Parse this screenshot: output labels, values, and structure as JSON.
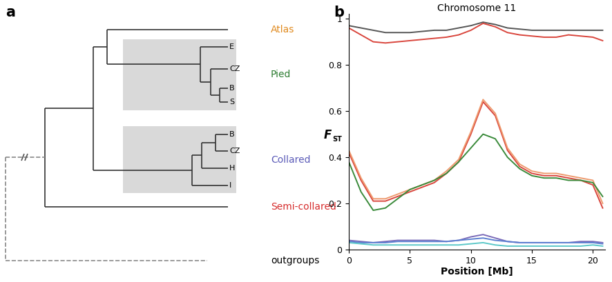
{
  "panel_labels": [
    "a",
    "b"
  ],
  "tree": {
    "species": [
      {
        "name": "Atlas",
        "color": "#e08a1e",
        "populations": []
      },
      {
        "name": "Pied",
        "color": "#2e7d32",
        "populations": [
          "E",
          "CZ",
          "B",
          "S"
        ]
      },
      {
        "name": "Collared",
        "color": "#5b5bb8",
        "populations": [
          "B",
          "CZ",
          "H",
          "I"
        ]
      },
      {
        "name": "Semi-collared",
        "color": "#d62c2c",
        "populations": []
      },
      {
        "name": "outgroups",
        "color": "#000000",
        "populations": []
      }
    ]
  },
  "chart_data": {
    "type": "line",
    "title": "Chromosome 11",
    "xlabel": "Position [Mb]",
    "ylabel": "FST",
    "x": [
      0,
      1,
      2,
      3,
      4,
      5,
      6,
      7,
      8,
      9,
      10,
      11,
      12,
      13,
      14,
      15,
      16,
      17,
      18,
      19,
      20,
      20.8
    ],
    "xlim": [
      0,
      21
    ],
    "xticks": [
      0,
      5,
      10,
      15,
      20
    ],
    "ylim": [
      0,
      1.02
    ],
    "yticks": [
      0,
      0.2,
      0.4,
      0.6,
      0.8,
      1
    ],
    "grid": false,
    "series": [
      {
        "color": "#555555",
        "values": [
          0.97,
          0.96,
          0.95,
          0.94,
          0.94,
          0.94,
          0.945,
          0.95,
          0.95,
          0.96,
          0.97,
          0.985,
          0.975,
          0.96,
          0.955,
          0.95,
          0.95,
          0.95,
          0.95,
          0.95,
          0.95,
          0.95
        ]
      },
      {
        "color": "#d9453c",
        "values": [
          0.96,
          0.93,
          0.9,
          0.895,
          0.9,
          0.905,
          0.91,
          0.915,
          0.92,
          0.93,
          0.95,
          0.98,
          0.965,
          0.94,
          0.93,
          0.925,
          0.92,
          0.92,
          0.93,
          0.925,
          0.92,
          0.905
        ]
      },
      {
        "color": "#d9453c",
        "values": [
          0.42,
          0.3,
          0.21,
          0.21,
          0.23,
          0.25,
          0.27,
          0.29,
          0.33,
          0.38,
          0.5,
          0.64,
          0.58,
          0.43,
          0.36,
          0.33,
          0.32,
          0.32,
          0.31,
          0.3,
          0.28,
          0.18
        ]
      },
      {
        "color": "#ee9a6e",
        "values": [
          0.43,
          0.31,
          0.22,
          0.22,
          0.24,
          0.26,
          0.28,
          0.3,
          0.34,
          0.39,
          0.51,
          0.65,
          0.59,
          0.44,
          0.37,
          0.34,
          0.33,
          0.33,
          0.32,
          0.31,
          0.3,
          0.2
        ]
      },
      {
        "color": "#3a8a3a",
        "values": [
          0.38,
          0.25,
          0.17,
          0.18,
          0.22,
          0.26,
          0.28,
          0.3,
          0.33,
          0.38,
          0.44,
          0.5,
          0.48,
          0.4,
          0.35,
          0.32,
          0.31,
          0.31,
          0.3,
          0.3,
          0.29,
          0.23
        ]
      },
      {
        "color": "#7a6ab8",
        "values": [
          0.04,
          0.035,
          0.03,
          0.035,
          0.04,
          0.04,
          0.04,
          0.04,
          0.035,
          0.04,
          0.055,
          0.065,
          0.05,
          0.035,
          0.03,
          0.03,
          0.03,
          0.03,
          0.03,
          0.035,
          0.035,
          0.03
        ]
      },
      {
        "color": "#5b7fd0",
        "values": [
          0.035,
          0.03,
          0.03,
          0.03,
          0.035,
          0.035,
          0.035,
          0.035,
          0.035,
          0.04,
          0.045,
          0.05,
          0.04,
          0.035,
          0.03,
          0.03,
          0.03,
          0.03,
          0.03,
          0.03,
          0.03,
          0.025
        ]
      },
      {
        "color": "#5bc8c8",
        "values": [
          0.03,
          0.025,
          0.02,
          0.02,
          0.02,
          0.02,
          0.02,
          0.02,
          0.02,
          0.02,
          0.025,
          0.03,
          0.02,
          0.015,
          0.015,
          0.015,
          0.015,
          0.015,
          0.015,
          0.015,
          0.02,
          0.015
        ]
      }
    ]
  }
}
